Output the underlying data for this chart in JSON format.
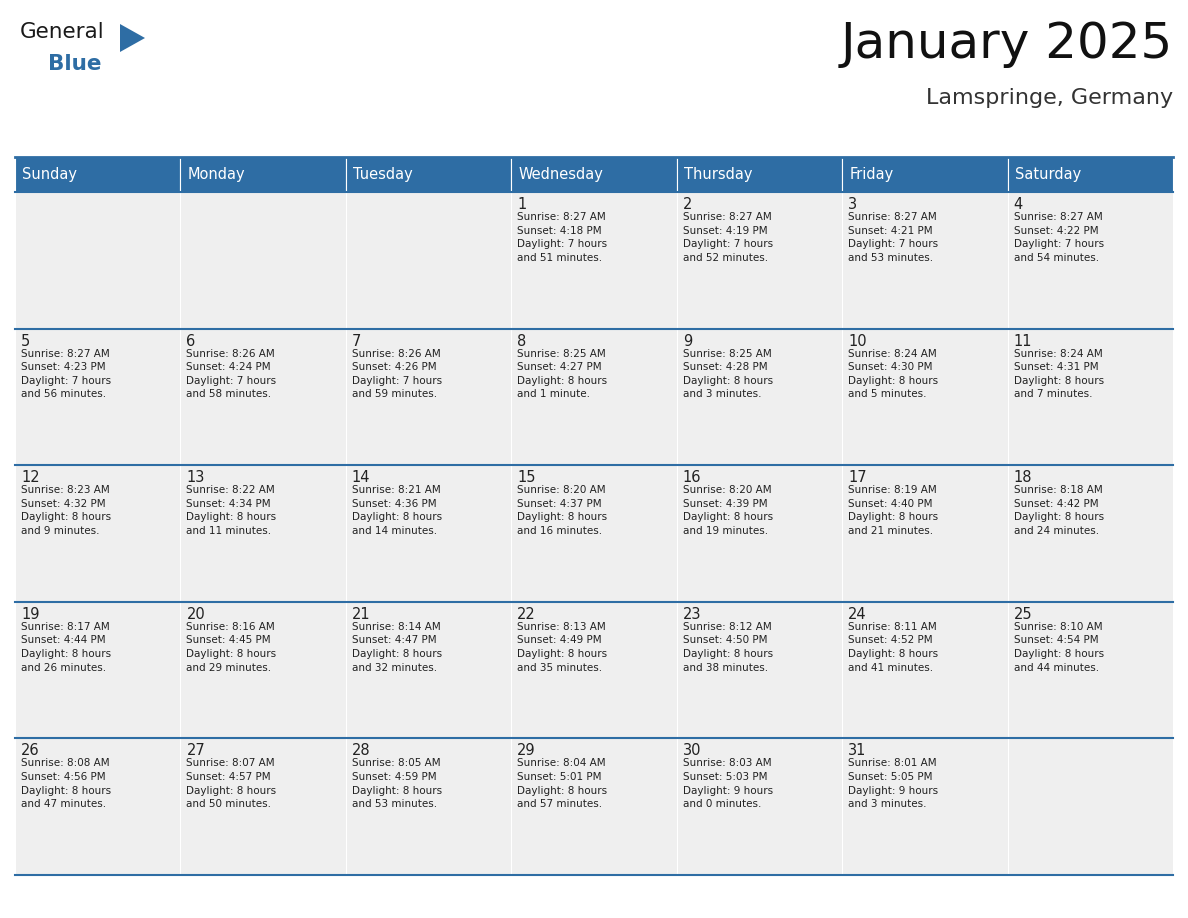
{
  "title": "January 2025",
  "subtitle": "Lamspringe, Germany",
  "header_bg": "#2E6DA4",
  "header_text_color": "#FFFFFF",
  "cell_bg_light": "#EFEFEF",
  "border_color": "#2E6DA4",
  "text_color": "#222222",
  "days_of_week": [
    "Sunday",
    "Monday",
    "Tuesday",
    "Wednesday",
    "Thursday",
    "Friday",
    "Saturday"
  ],
  "calendar_data": [
    [
      {
        "day": "",
        "info": ""
      },
      {
        "day": "",
        "info": ""
      },
      {
        "day": "",
        "info": ""
      },
      {
        "day": "1",
        "info": "Sunrise: 8:27 AM\nSunset: 4:18 PM\nDaylight: 7 hours\nand 51 minutes."
      },
      {
        "day": "2",
        "info": "Sunrise: 8:27 AM\nSunset: 4:19 PM\nDaylight: 7 hours\nand 52 minutes."
      },
      {
        "day": "3",
        "info": "Sunrise: 8:27 AM\nSunset: 4:21 PM\nDaylight: 7 hours\nand 53 minutes."
      },
      {
        "day": "4",
        "info": "Sunrise: 8:27 AM\nSunset: 4:22 PM\nDaylight: 7 hours\nand 54 minutes."
      }
    ],
    [
      {
        "day": "5",
        "info": "Sunrise: 8:27 AM\nSunset: 4:23 PM\nDaylight: 7 hours\nand 56 minutes."
      },
      {
        "day": "6",
        "info": "Sunrise: 8:26 AM\nSunset: 4:24 PM\nDaylight: 7 hours\nand 58 minutes."
      },
      {
        "day": "7",
        "info": "Sunrise: 8:26 AM\nSunset: 4:26 PM\nDaylight: 7 hours\nand 59 minutes."
      },
      {
        "day": "8",
        "info": "Sunrise: 8:25 AM\nSunset: 4:27 PM\nDaylight: 8 hours\nand 1 minute."
      },
      {
        "day": "9",
        "info": "Sunrise: 8:25 AM\nSunset: 4:28 PM\nDaylight: 8 hours\nand 3 minutes."
      },
      {
        "day": "10",
        "info": "Sunrise: 8:24 AM\nSunset: 4:30 PM\nDaylight: 8 hours\nand 5 minutes."
      },
      {
        "day": "11",
        "info": "Sunrise: 8:24 AM\nSunset: 4:31 PM\nDaylight: 8 hours\nand 7 minutes."
      }
    ],
    [
      {
        "day": "12",
        "info": "Sunrise: 8:23 AM\nSunset: 4:32 PM\nDaylight: 8 hours\nand 9 minutes."
      },
      {
        "day": "13",
        "info": "Sunrise: 8:22 AM\nSunset: 4:34 PM\nDaylight: 8 hours\nand 11 minutes."
      },
      {
        "day": "14",
        "info": "Sunrise: 8:21 AM\nSunset: 4:36 PM\nDaylight: 8 hours\nand 14 minutes."
      },
      {
        "day": "15",
        "info": "Sunrise: 8:20 AM\nSunset: 4:37 PM\nDaylight: 8 hours\nand 16 minutes."
      },
      {
        "day": "16",
        "info": "Sunrise: 8:20 AM\nSunset: 4:39 PM\nDaylight: 8 hours\nand 19 minutes."
      },
      {
        "day": "17",
        "info": "Sunrise: 8:19 AM\nSunset: 4:40 PM\nDaylight: 8 hours\nand 21 minutes."
      },
      {
        "day": "18",
        "info": "Sunrise: 8:18 AM\nSunset: 4:42 PM\nDaylight: 8 hours\nand 24 minutes."
      }
    ],
    [
      {
        "day": "19",
        "info": "Sunrise: 8:17 AM\nSunset: 4:44 PM\nDaylight: 8 hours\nand 26 minutes."
      },
      {
        "day": "20",
        "info": "Sunrise: 8:16 AM\nSunset: 4:45 PM\nDaylight: 8 hours\nand 29 minutes."
      },
      {
        "day": "21",
        "info": "Sunrise: 8:14 AM\nSunset: 4:47 PM\nDaylight: 8 hours\nand 32 minutes."
      },
      {
        "day": "22",
        "info": "Sunrise: 8:13 AM\nSunset: 4:49 PM\nDaylight: 8 hours\nand 35 minutes."
      },
      {
        "day": "23",
        "info": "Sunrise: 8:12 AM\nSunset: 4:50 PM\nDaylight: 8 hours\nand 38 minutes."
      },
      {
        "day": "24",
        "info": "Sunrise: 8:11 AM\nSunset: 4:52 PM\nDaylight: 8 hours\nand 41 minutes."
      },
      {
        "day": "25",
        "info": "Sunrise: 8:10 AM\nSunset: 4:54 PM\nDaylight: 8 hours\nand 44 minutes."
      }
    ],
    [
      {
        "day": "26",
        "info": "Sunrise: 8:08 AM\nSunset: 4:56 PM\nDaylight: 8 hours\nand 47 minutes."
      },
      {
        "day": "27",
        "info": "Sunrise: 8:07 AM\nSunset: 4:57 PM\nDaylight: 8 hours\nand 50 minutes."
      },
      {
        "day": "28",
        "info": "Sunrise: 8:05 AM\nSunset: 4:59 PM\nDaylight: 8 hours\nand 53 minutes."
      },
      {
        "day": "29",
        "info": "Sunrise: 8:04 AM\nSunset: 5:01 PM\nDaylight: 8 hours\nand 57 minutes."
      },
      {
        "day": "30",
        "info": "Sunrise: 8:03 AM\nSunset: 5:03 PM\nDaylight: 9 hours\nand 0 minutes."
      },
      {
        "day": "31",
        "info": "Sunrise: 8:01 AM\nSunset: 5:05 PM\nDaylight: 9 hours\nand 3 minutes."
      },
      {
        "day": "",
        "info": ""
      }
    ]
  ],
  "logo_general_color": "#1a1a1a",
  "logo_blue_color": "#2E6DA4",
  "logo_triangle_color": "#2E6DA4"
}
